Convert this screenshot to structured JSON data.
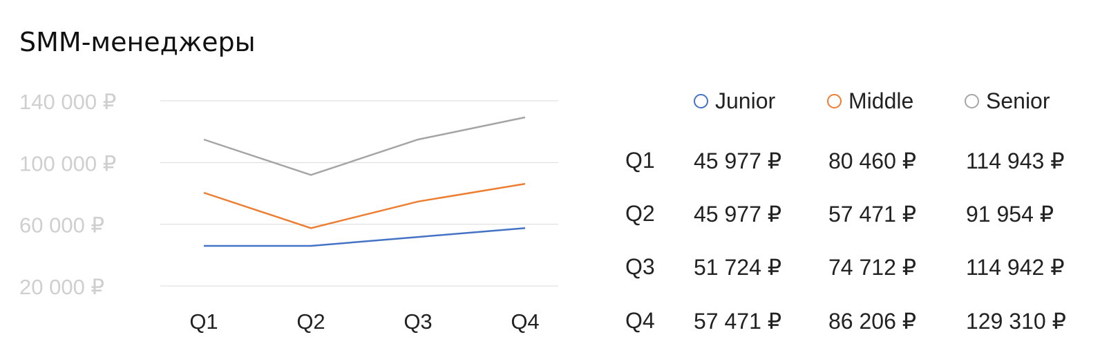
{
  "title": "SMM-менеджеры",
  "colors": {
    "junior": "#4472c4",
    "middle": "#ed7d31",
    "senior": "#a5a5a5",
    "grid": "#d9d9d9"
  },
  "legend": [
    {
      "label": "Junior",
      "color": "#4472c4"
    },
    {
      "label": "Middle",
      "color": "#ed7d31"
    },
    {
      "label": "Senior",
      "color": "#a5a5a5"
    }
  ],
  "table": {
    "rows": [
      {
        "label": "Q1",
        "values": [
          "45 977 ₽",
          "80 460 ₽",
          "114 943 ₽"
        ]
      },
      {
        "label": "Q2",
        "values": [
          "45 977 ₽",
          "57 471 ₽",
          "91 954 ₽"
        ]
      },
      {
        "label": "Q3",
        "values": [
          "51 724 ₽",
          "74 712 ₽",
          "114 942 ₽"
        ]
      },
      {
        "label": "Q4",
        "values": [
          "57 471 ₽",
          "86 206 ₽",
          "129 310 ₽"
        ]
      }
    ]
  },
  "chart_data": {
    "type": "line",
    "title": "SMM-менеджеры",
    "categories": [
      "Q1",
      "Q2",
      "Q3",
      "Q4"
    ],
    "y_ticks": [
      "140 000 ₽",
      "100 000 ₽",
      "60 000 ₽",
      "20 000 ₽"
    ],
    "y_tick_values": [
      140000,
      100000,
      60000,
      20000
    ],
    "ylim": [
      20000,
      140000
    ],
    "grid": true,
    "legend_position": "right",
    "series": [
      {
        "name": "Junior",
        "color": "#4472c4",
        "values": [
          45977,
          45977,
          51724,
          57471
        ]
      },
      {
        "name": "Middle",
        "color": "#ed7d31",
        "values": [
          80460,
          57471,
          74712,
          86206
        ]
      },
      {
        "name": "Senior",
        "color": "#a5a5a5",
        "values": [
          114943,
          91954,
          114942,
          129310
        ]
      }
    ]
  }
}
